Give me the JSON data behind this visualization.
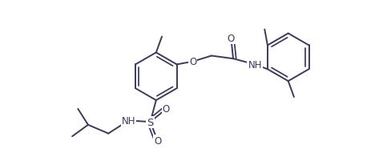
{
  "background_color": "#ffffff",
  "line_color": "#3a3a5a",
  "line_width": 1.4,
  "font_size": 8.5,
  "figsize": [
    4.89,
    2.07
  ],
  "dpi": 100,
  "xlim": [
    -2.7,
    2.7
  ],
  "ylim": [
    -1.1,
    1.1
  ]
}
